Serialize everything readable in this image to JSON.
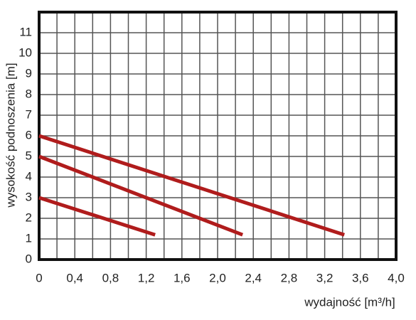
{
  "chart_data": {
    "type": "line",
    "xlabel": "wydajność [m³/h]",
    "ylabel": "wysokość podnoszenia [m]",
    "xlim": [
      0,
      4
    ],
    "ylim": [
      0,
      12
    ],
    "xticks": [
      0,
      {
        "value": 0.4,
        "label": "0,4"
      },
      {
        "value": 0.8,
        "label": "0,8"
      },
      {
        "value": 1.2,
        "label": "1,2"
      },
      {
        "value": 1.6,
        "label": "1,6"
      },
      {
        "value": 2.0,
        "label": "2,0"
      },
      {
        "value": 2.4,
        "label": "2,4"
      },
      {
        "value": 2.8,
        "label": "2,8"
      },
      {
        "value": 3.2,
        "label": "3,2"
      },
      {
        "value": 3.6,
        "label": "3,6"
      },
      {
        "value": 4.0,
        "label": "4,0"
      }
    ],
    "yticks": [
      0,
      1,
      2,
      3,
      4,
      5,
      6,
      7,
      8,
      9,
      10,
      11
    ],
    "xgrid": [
      0.2,
      0.4,
      0.6,
      0.8,
      1.0,
      1.2,
      1.4,
      1.6,
      1.8,
      2.0,
      2.2,
      2.4,
      2.6,
      2.8,
      3.0,
      3.2,
      3.4,
      3.6,
      3.8
    ],
    "grid": true,
    "series": [
      {
        "color": "#b01c1c",
        "x": [
          0,
          1.3
        ],
        "values": [
          3,
          1.2
        ]
      },
      {
        "color": "#b01c1c",
        "x": [
          0,
          2.28
        ],
        "values": [
          5,
          1.2
        ]
      },
      {
        "color": "#b01c1c",
        "x": [
          0,
          3.42
        ],
        "values": [
          6,
          1.2
        ]
      }
    ]
  }
}
